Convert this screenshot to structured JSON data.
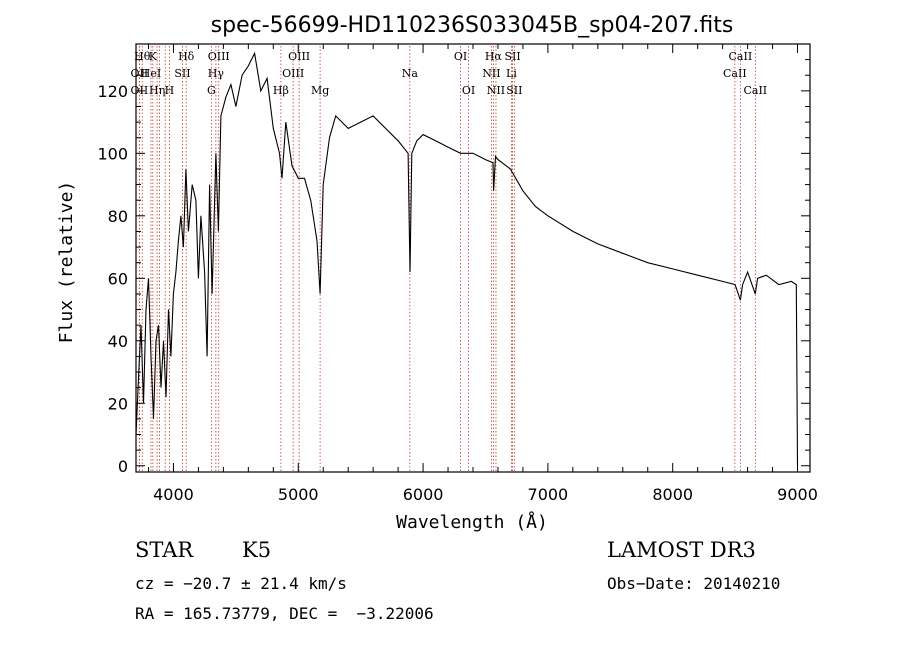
{
  "chart_data": {
    "type": "line",
    "title": "spec-56699-HD110236S033045B_sp04-207.fits",
    "xlabel": "Wavelength (Å)",
    "ylabel": "Flux (relative)",
    "xlim": [
      3700,
      9100
    ],
    "ylim": [
      -2,
      135
    ],
    "xticks": [
      4000,
      5000,
      6000,
      7000,
      8000,
      9000
    ],
    "yticks": [
      0,
      20,
      40,
      60,
      80,
      100,
      120
    ],
    "series": [
      {
        "name": "spectrum",
        "x": [
          3700,
          3720,
          3740,
          3760,
          3780,
          3800,
          3820,
          3840,
          3860,
          3880,
          3900,
          3920,
          3940,
          3960,
          3980,
          4000,
          4020,
          4040,
          4060,
          4080,
          4100,
          4120,
          4150,
          4180,
          4200,
          4220,
          4250,
          4270,
          4290,
          4310,
          4340,
          4360,
          4380,
          4420,
          4460,
          4500,
          4550,
          4600,
          4650,
          4700,
          4750,
          4800,
          4850,
          4870,
          4900,
          4950,
          5000,
          5050,
          5100,
          5150,
          5175,
          5200,
          5250,
          5300,
          5400,
          5500,
          5600,
          5700,
          5800,
          5880,
          5895,
          5910,
          5950,
          6000,
          6100,
          6200,
          6300,
          6400,
          6500,
          6560,
          6565,
          6580,
          6600,
          6700,
          6800,
          6900,
          7000,
          7200,
          7400,
          7600,
          7800,
          8000,
          8200,
          8400,
          8500,
          8542,
          8560,
          8600,
          8662,
          8680,
          8750,
          8850,
          8950,
          8990,
          9000
        ],
        "y": [
          10,
          28,
          45,
          20,
          50,
          60,
          35,
          15,
          40,
          45,
          25,
          40,
          22,
          50,
          35,
          55,
          62,
          72,
          80,
          70,
          95,
          75,
          90,
          85,
          60,
          80,
          62,
          35,
          90,
          55,
          100,
          75,
          112,
          118,
          122,
          115,
          125,
          128,
          132,
          120,
          124,
          108,
          100,
          92,
          110,
          96,
          92,
          92,
          85,
          72,
          55,
          90,
          105,
          112,
          108,
          110,
          112,
          108,
          104,
          100,
          62,
          100,
          104,
          106,
          104,
          102,
          100,
          100,
          98,
          97,
          88,
          99,
          98,
          95,
          88,
          83,
          80,
          75,
          71,
          68,
          65,
          63,
          61,
          59,
          58,
          53,
          58,
          62,
          55,
          60,
          61,
          58,
          59,
          58,
          0
        ]
      }
    ],
    "line_markers": [
      {
        "wavelength": 3750,
        "label": "Hθ",
        "row": 0
      },
      {
        "wavelength": 3727,
        "label": "OII",
        "row": 1
      },
      {
        "wavelength": 3727,
        "label": "OII",
        "row": 2
      },
      {
        "wavelength": 3835,
        "label": "K",
        "row": 0
      },
      {
        "wavelength": 3820,
        "label": "HeI",
        "row": 1
      },
      {
        "wavelength": 3869,
        "label": "Hη",
        "row": 2
      },
      {
        "wavelength": 3889,
        "label": "",
        "row": -1
      },
      {
        "wavelength": 3934,
        "label": "",
        "row": -1
      },
      {
        "wavelength": 3968,
        "label": "H",
        "row": 2
      },
      {
        "wavelength": 4102,
        "label": "Hδ",
        "row": 0
      },
      {
        "wavelength": 4072,
        "label": "SII",
        "row": 1
      },
      {
        "wavelength": 4304,
        "label": "G",
        "row": 2
      },
      {
        "wavelength": 4340,
        "label": "Hγ",
        "row": 1
      },
      {
        "wavelength": 4363,
        "label": "OIII",
        "row": 0
      },
      {
        "wavelength": 4861,
        "label": "Hβ",
        "row": 2
      },
      {
        "wavelength": 4959,
        "label": "OIII",
        "row": 1
      },
      {
        "wavelength": 5007,
        "label": "OIII",
        "row": 0
      },
      {
        "wavelength": 5175,
        "label": "Mg",
        "row": 2
      },
      {
        "wavelength": 5894,
        "label": "Na",
        "row": 1
      },
      {
        "wavelength": 6300,
        "label": "OI",
        "row": 0
      },
      {
        "wavelength": 6364,
        "label": "OI",
        "row": 2
      },
      {
        "wavelength": 6548,
        "label": "NII",
        "row": 1
      },
      {
        "wavelength": 6563,
        "label": "Hα",
        "row": 0
      },
      {
        "wavelength": 6584,
        "label": "NII",
        "row": 2
      },
      {
        "wavelength": 6708,
        "label": "Li",
        "row": 1
      },
      {
        "wavelength": 6717,
        "label": "SII",
        "row": 0
      },
      {
        "wavelength": 6731,
        "label": "SII",
        "row": 2
      },
      {
        "wavelength": 8498,
        "label": "CaII",
        "row": 1
      },
      {
        "wavelength": 8542,
        "label": "CaII",
        "row": 0
      },
      {
        "wavelength": 8662,
        "label": "CaII",
        "row": 2
      }
    ]
  },
  "info": {
    "object_class": "STAR",
    "subclass": "K5",
    "redshift_text": "cz = −20.7 ± 21.4 km/s",
    "coords_text": "RA = 165.73779, DEC =  −3.22006",
    "survey": "LAMOST DR3",
    "obs_date_text": "Obs−Date: 20140210"
  },
  "colors": {
    "spectrum": "#000000",
    "marker": "#c0392b",
    "axes": "#000000"
  }
}
